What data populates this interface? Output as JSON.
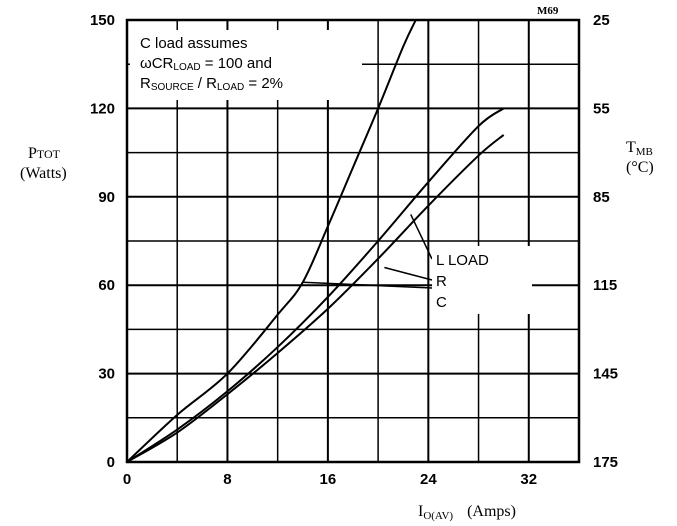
{
  "chart_data": {
    "type": "line",
    "figure_code": "M69",
    "x": {
      "label_main": "I",
      "label_sub": "O(AV)",
      "unit": "(Amps)",
      "lim": [
        0,
        36
      ],
      "ticks": [
        0,
        8,
        16,
        24,
        32
      ]
    },
    "y_left": {
      "label_main": "P",
      "label_sub": "TOT",
      "unit": "(Watts)",
      "lim": [
        0,
        150
      ],
      "ticks": [
        0,
        30,
        60,
        90,
        120,
        150
      ]
    },
    "y_right": {
      "label_main": "T",
      "label_sub": "MB",
      "unit": "(°C)",
      "ticks": [
        "175",
        "145",
        "115",
        "85",
        "55",
        "25"
      ]
    },
    "grid": true,
    "annotation": {
      "line1": "C load assumes",
      "line2_a": "ωCR",
      "line2_sub": "LOAD",
      "line2_b": " = 100 and",
      "line3_a": "R",
      "line3_sub_a": "SOURCE",
      "line3_b": " / R",
      "line3_sub_b": "LOAD",
      "line3_c": " = 2%"
    },
    "series": [
      {
        "name": "L LOAD",
        "color": "#000000",
        "points": [
          [
            0,
            0
          ],
          [
            4,
            11
          ],
          [
            8,
            24
          ],
          [
            12,
            39
          ],
          [
            16,
            56
          ],
          [
            20,
            75
          ],
          [
            24,
            95
          ],
          [
            28,
            114
          ],
          [
            30,
            120
          ]
        ]
      },
      {
        "name": "R",
        "color": "#000000",
        "points": [
          [
            0,
            0
          ],
          [
            4,
            10
          ],
          [
            8,
            23
          ],
          [
            12,
            37
          ],
          [
            16,
            52
          ],
          [
            20,
            69
          ],
          [
            24,
            87
          ],
          [
            28,
            104
          ],
          [
            30,
            111
          ]
        ]
      },
      {
        "name": "C",
        "color": "#000000",
        "points": [
          [
            0,
            0
          ],
          [
            4,
            16
          ],
          [
            8,
            30
          ],
          [
            12,
            50
          ],
          [
            14,
            61
          ],
          [
            16,
            80
          ],
          [
            18,
            100
          ],
          [
            20,
            120
          ],
          [
            22,
            141
          ],
          [
            23,
            150
          ]
        ]
      }
    ],
    "series_labels": [
      "L LOAD",
      "R",
      "C"
    ]
  }
}
